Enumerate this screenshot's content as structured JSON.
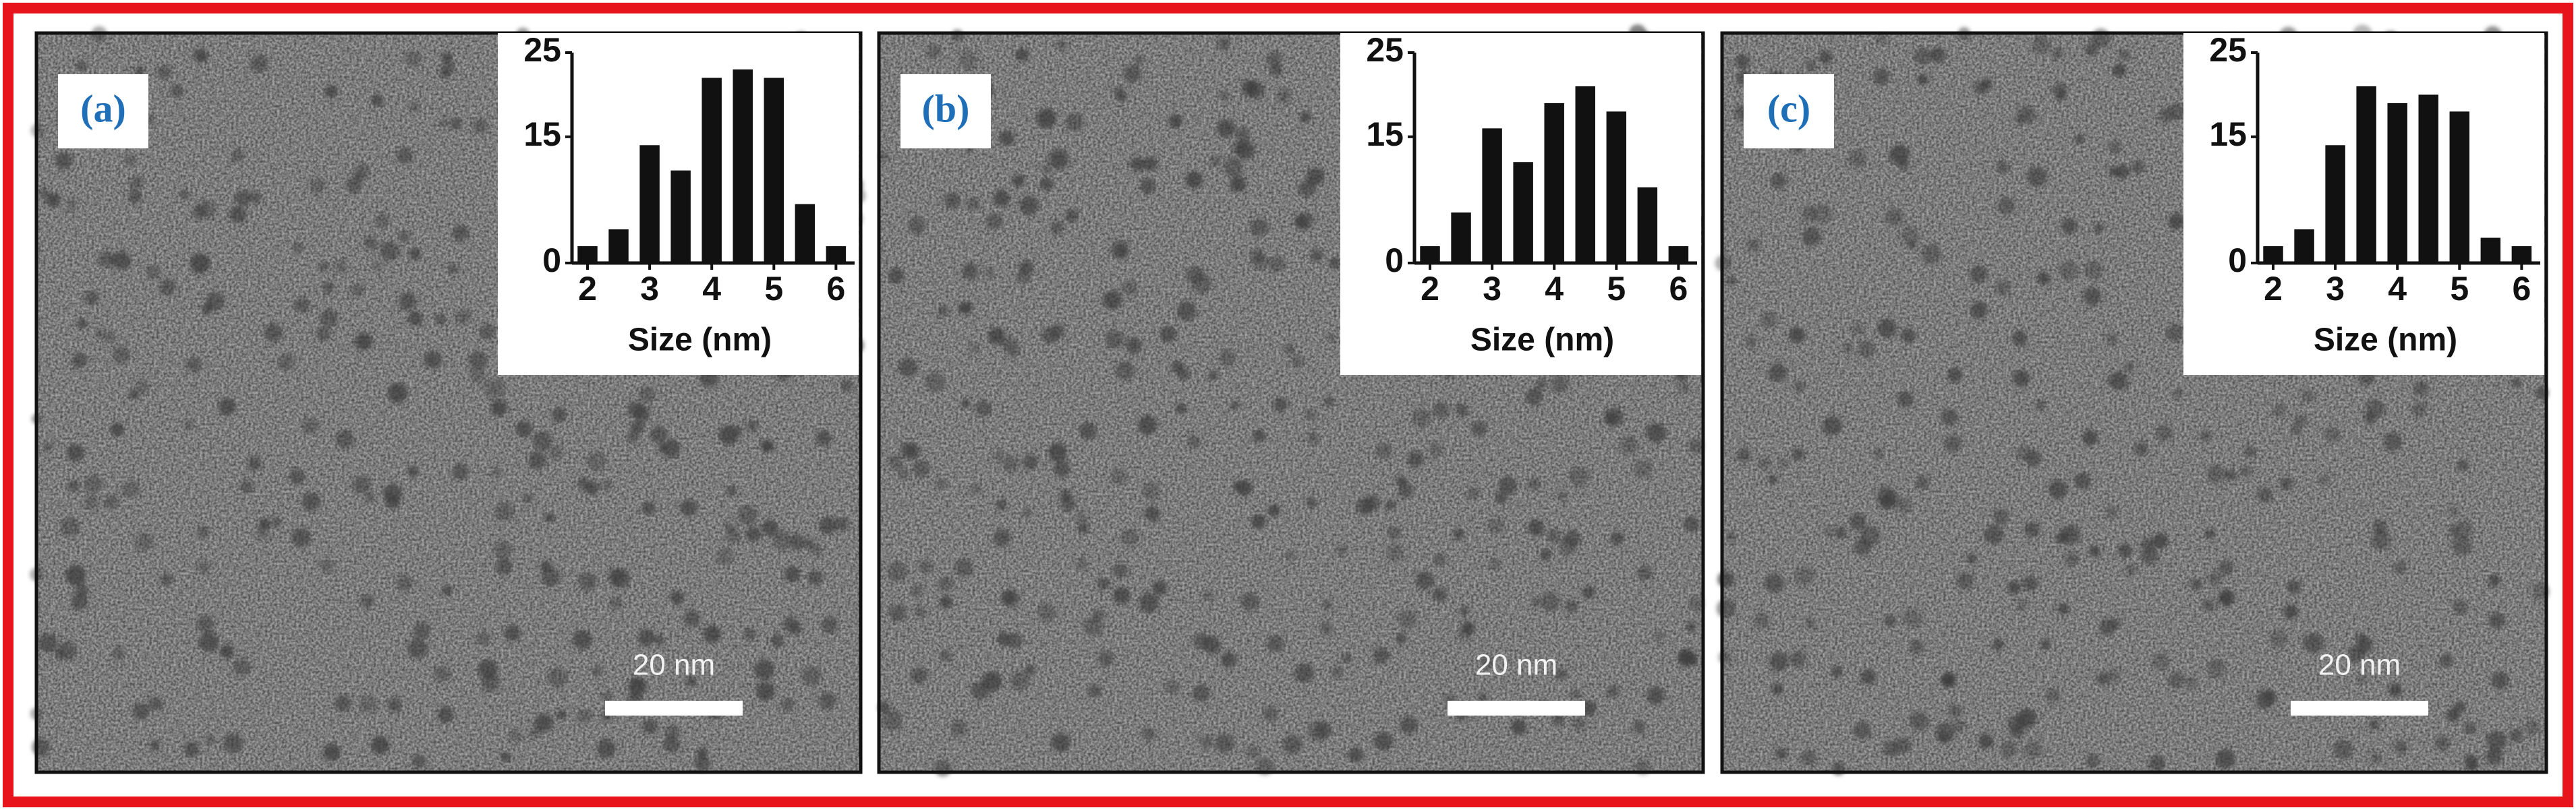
{
  "chart_data": [
    {
      "type": "bar",
      "panel_label": "(a)",
      "scale_bar": "20 nm",
      "xlabel": "Size (nm)",
      "x": [
        2,
        2.5,
        3,
        3.5,
        4,
        4.5,
        5,
        5.5,
        6
      ],
      "values": [
        2,
        4,
        14,
        11,
        22,
        23,
        22,
        7,
        2
      ],
      "color": "#111111",
      "xlim": [
        1.75,
        6.3
      ],
      "xticks": [
        2,
        3,
        4,
        5,
        6
      ],
      "ylim": [
        0,
        25
      ],
      "yticks": [
        0,
        15,
        25
      ]
    },
    {
      "type": "bar",
      "panel_label": "(b)",
      "scale_bar": "20 nm",
      "xlabel": "Size (nm)",
      "x": [
        2,
        2.5,
        3,
        3.5,
        4,
        4.5,
        5,
        5.5,
        6
      ],
      "values": [
        2,
        6,
        16,
        12,
        19,
        21,
        18,
        9,
        2
      ],
      "color": "#111111",
      "xlim": [
        1.75,
        6.3
      ],
      "xticks": [
        2,
        3,
        4,
        5,
        6
      ],
      "ylim": [
        0,
        25
      ],
      "yticks": [
        0,
        15,
        25
      ]
    },
    {
      "type": "bar",
      "panel_label": "(c)",
      "scale_bar": "20 nm",
      "xlabel": "Size (nm)",
      "x": [
        2,
        2.5,
        3,
        3.5,
        4,
        4.5,
        5,
        5.5,
        6
      ],
      "values": [
        2,
        4,
        14,
        21,
        19,
        20,
        18,
        3,
        2
      ],
      "color": "#111111",
      "xlim": [
        1.75,
        6.3
      ],
      "xticks": [
        2,
        3,
        4,
        5,
        6
      ],
      "ylim": [
        0,
        25
      ],
      "yticks": [
        0,
        15,
        25
      ]
    }
  ]
}
